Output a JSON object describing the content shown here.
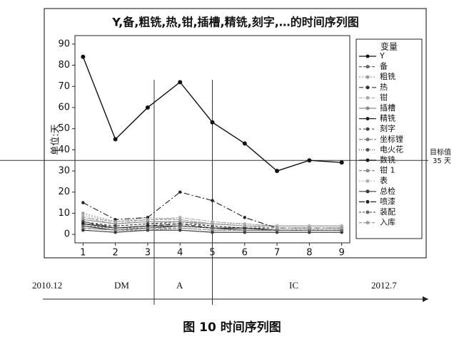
{
  "chart_data": {
    "type": "line",
    "title": "Y,备,粗铣,热,钳,插槽,精铣,刻字,…的时间序列图",
    "y_label": "单位:天",
    "legend_title": "变量",
    "x": [
      1,
      2,
      3,
      4,
      5,
      6,
      7,
      8,
      9
    ],
    "xlim": [
      0.75,
      9.25
    ],
    "xticks": [
      1,
      2,
      3,
      4,
      5,
      6,
      7,
      8,
      9
    ],
    "ylim": [
      -4,
      94
    ],
    "yticks": [
      0,
      10,
      20,
      30,
      40,
      50,
      60,
      70,
      80,
      90
    ],
    "phase_lines": [
      3.2,
      5
    ],
    "target": {
      "value": 35,
      "label": "35 天"
    },
    "target_title": "目标值",
    "timeline": {
      "start": "2010.12",
      "phases": [
        "DM",
        "A",
        "IC"
      ],
      "end": "2012.7"
    },
    "caption": "图 10 时间序列图",
    "series": [
      {
        "name": "Y",
        "color": "#111111",
        "dash": "",
        "values": [
          84,
          45,
          60,
          72,
          53,
          43,
          30,
          35,
          34
        ]
      },
      {
        "name": "备",
        "color": "#666666",
        "dash": "4,2",
        "values": [
          5,
          4,
          5,
          6,
          4,
          3,
          3,
          3,
          3
        ]
      },
      {
        "name": "粗铣",
        "color": "#999999",
        "dash": "2,2",
        "values": [
          10,
          6,
          8,
          7,
          5,
          5,
          4,
          4,
          4
        ]
      },
      {
        "name": "热",
        "color": "#333333",
        "dash": "6,3",
        "values": [
          6,
          3,
          4,
          5,
          3,
          3,
          2,
          2,
          2
        ]
      },
      {
        "name": "钳",
        "color": "#aaaaaa",
        "dash": "4,2,1,2",
        "values": [
          8,
          5,
          7,
          8,
          6,
          5,
          4,
          4,
          4
        ]
      },
      {
        "name": "插槽",
        "color": "#888888",
        "dash": "",
        "values": [
          7,
          5,
          6,
          6,
          5,
          4,
          4,
          4,
          4
        ]
      },
      {
        "name": "精铣",
        "color": "#222222",
        "dash": "",
        "values": [
          4,
          2,
          3,
          4,
          3,
          2,
          2,
          2,
          2
        ]
      },
      {
        "name": "刻字",
        "color": "#444444",
        "dash": "3,3",
        "values": [
          6,
          4,
          5,
          5,
          4,
          3,
          3,
          3,
          3
        ]
      },
      {
        "name": "坐标镗",
        "color": "#777777",
        "dash": "5,2",
        "values": [
          3,
          2,
          3,
          3,
          2,
          2,
          2,
          2,
          2
        ]
      },
      {
        "name": "电火花",
        "color": "#555555",
        "dash": "1,2",
        "values": [
          2,
          1,
          2,
          2,
          1,
          1,
          1,
          1,
          1
        ]
      },
      {
        "name": "数铣",
        "color": "#1a1a1a",
        "dash": "",
        "values": [
          5,
          3,
          4,
          4,
          3,
          3,
          2,
          2,
          2
        ]
      },
      {
        "name": "钳 1",
        "color": "#8a8a8a",
        "dash": "4,2",
        "values": [
          3,
          2,
          2,
          3,
          2,
          2,
          2,
          2,
          2
        ]
      },
      {
        "name": "表",
        "color": "#b0b0b0",
        "dash": "2,2",
        "values": [
          9,
          6,
          7,
          8,
          6,
          5,
          4,
          4,
          4
        ]
      },
      {
        "name": "总检",
        "color": "#3a3a3a",
        "dash": "",
        "values": [
          2,
          1,
          2,
          2,
          1,
          1,
          1,
          1,
          1
        ]
      },
      {
        "name": "喷漆",
        "color": "#222222",
        "dash": "8,3,2,3",
        "values": [
          15,
          7,
          8,
          20,
          16,
          8,
          3,
          3,
          3
        ]
      },
      {
        "name": "装配",
        "color": "#666666",
        "dash": "3,2",
        "values": [
          4,
          3,
          3,
          4,
          3,
          2,
          2,
          2,
          2
        ]
      },
      {
        "name": "入库",
        "color": "#a0a0a0",
        "dash": "4,2",
        "values": [
          8,
          6,
          7,
          7,
          5,
          4,
          3,
          3,
          3
        ]
      }
    ]
  }
}
